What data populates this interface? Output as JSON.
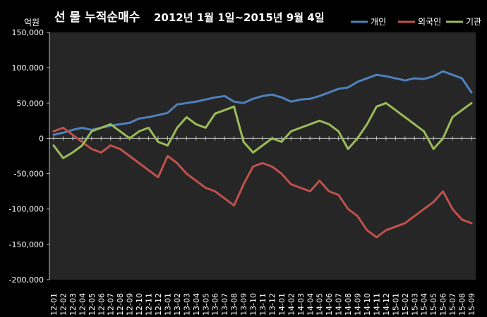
{
  "chart_data": {
    "type": "line",
    "title": "선 물 누적순매수",
    "subtitle": "2012년 1월 1일~2015년 9월 4일",
    "unit_label": "억원",
    "ylim": [
      -200000,
      150000
    ],
    "y_ticks": [
      150000,
      100000,
      50000,
      0,
      -50000,
      -100000,
      -150000,
      -200000
    ],
    "y_tick_labels": [
      "150,000",
      "100,000",
      "50,000",
      "0",
      "-50,000",
      "-100,000",
      "-150,000",
      "-200,000"
    ],
    "grid": false,
    "legend_position": "top-right",
    "categories": [
      "12-01",
      "12-02",
      "12-03",
      "12-04",
      "12-05",
      "12-06",
      "12-07",
      "12-08",
      "12-09",
      "12-10",
      "12-11",
      "12-12",
      "13-01",
      "13-02",
      "13-03",
      "13-04",
      "13-05",
      "13-06",
      "13-07",
      "13-08",
      "13-09",
      "13-10",
      "13-11",
      "13-12",
      "14-01",
      "14-02",
      "14-03",
      "14-04",
      "14-05",
      "14-06",
      "14-07",
      "14-08",
      "14-09",
      "14-10",
      "14-11",
      "14-12",
      "15-01",
      "15-02",
      "15-03",
      "15-04",
      "15-05",
      "15-06",
      "15-07",
      "15-08",
      "15-09"
    ],
    "series": [
      {
        "name": "개인",
        "color": "#4f81bd",
        "values": [
          5000,
          8000,
          12000,
          15000,
          12000,
          15000,
          18000,
          20000,
          22000,
          28000,
          30000,
          33000,
          36000,
          48000,
          50000,
          52000,
          55000,
          58000,
          60000,
          52000,
          50000,
          56000,
          60000,
          62000,
          58000,
          52000,
          55000,
          56000,
          60000,
          65000,
          70000,
          72000,
          80000,
          85000,
          90000,
          88000,
          85000,
          82000,
          85000,
          84000,
          88000,
          95000,
          90000,
          85000,
          65000
        ]
      },
      {
        "name": "외국인",
        "color": "#c0504d",
        "values": [
          10000,
          15000,
          5000,
          -5000,
          -15000,
          -20000,
          -10000,
          -15000,
          -25000,
          -35000,
          -45000,
          -55000,
          -25000,
          -35000,
          -50000,
          -60000,
          -70000,
          -75000,
          -85000,
          -95000,
          -65000,
          -40000,
          -35000,
          -40000,
          -50000,
          -65000,
          -70000,
          -75000,
          -60000,
          -75000,
          -80000,
          -100000,
          -110000,
          -130000,
          -140000,
          -130000,
          -125000,
          -120000,
          -110000,
          -100000,
          -90000,
          -75000,
          -100000,
          -115000,
          -120000
        ]
      },
      {
        "name": "기관",
        "color": "#9bbb59",
        "values": [
          -10000,
          -28000,
          -20000,
          -10000,
          10000,
          15000,
          20000,
          10000,
          0,
          10000,
          15000,
          -5000,
          -10000,
          15000,
          30000,
          20000,
          15000,
          35000,
          40000,
          45000,
          -5000,
          -20000,
          -10000,
          0,
          -5000,
          10000,
          15000,
          20000,
          25000,
          20000,
          10000,
          -15000,
          0,
          20000,
          45000,
          50000,
          40000,
          30000,
          20000,
          10000,
          -15000,
          0,
          30000,
          40000,
          50000
        ]
      }
    ]
  }
}
